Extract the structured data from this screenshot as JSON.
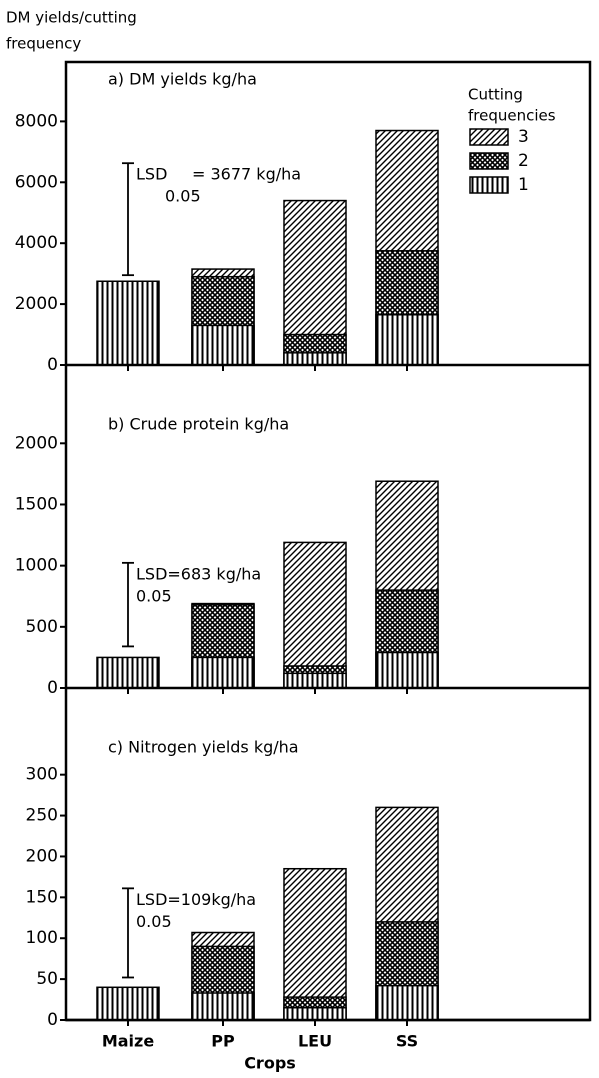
{
  "ylabel": [
    "DM yields/cutting",
    "frequency"
  ],
  "xlabel": "Crops",
  "categories": [
    "Maize",
    "PP",
    "LEU",
    "SS"
  ],
  "legend_title": [
    "Cutting",
    "frequencies"
  ],
  "chart_data": [
    {
      "type": "bar",
      "barmode": "overlay",
      "title": "a) DM yields  kg/ha",
      "ylim": [
        0,
        9950
      ],
      "yticks": [
        0,
        2000,
        4000,
        6000,
        8000
      ],
      "series": [
        {
          "name": "3",
          "pattern": "diagonal",
          "color": "#000000",
          "values": [
            null,
            3150,
            5400,
            7700
          ]
        },
        {
          "name": "2",
          "pattern": "cross",
          "color": "#000000",
          "values": [
            null,
            2900,
            1000,
            3750
          ]
        },
        {
          "name": "1",
          "pattern": "vertical",
          "color": "#000000",
          "values": [
            2750,
            1300,
            400,
            1650
          ]
        }
      ],
      "lsd": {
        "label": "LSD",
        "sub": "0.05",
        "text": "= 3677 kg/ha",
        "from": 2950,
        "value": 3677
      }
    },
    {
      "type": "bar",
      "barmode": "overlay",
      "title": "b) Crude  protein  kg/ha",
      "ylim": [
        0,
        2640
      ],
      "yticks": [
        0,
        500,
        1000,
        1500,
        2000
      ],
      "series": [
        {
          "name": "3",
          "pattern": "diagonal",
          "color": "#000000",
          "values": [
            null,
            690,
            1190,
            1690
          ]
        },
        {
          "name": "2",
          "pattern": "cross",
          "color": "#000000",
          "values": [
            null,
            680,
            180,
            800
          ]
        },
        {
          "name": "1",
          "pattern": "vertical",
          "color": "#000000",
          "values": [
            250,
            250,
            120,
            290
          ]
        }
      ],
      "lsd": {
        "label": "LSD=683 kg/ha",
        "sub": "0.05",
        "from": 340,
        "value": 683
      }
    },
    {
      "type": "bar",
      "barmode": "overlay",
      "title": "c) Nitrogen  yields  kg/ha",
      "ylim": [
        0,
        406
      ],
      "yticks": [
        0,
        50,
        100,
        150,
        200,
        250,
        300
      ],
      "series": [
        {
          "name": "3",
          "pattern": "diagonal",
          "color": "#000000",
          "values": [
            null,
            107,
            185,
            260
          ]
        },
        {
          "name": "2",
          "pattern": "cross",
          "color": "#000000",
          "values": [
            null,
            90,
            28,
            120
          ]
        },
        {
          "name": "1",
          "pattern": "vertical",
          "color": "#000000",
          "values": [
            40,
            33,
            15,
            42
          ]
        }
      ],
      "lsd": {
        "label": "LSD=109kg/ha",
        "sub": "0.05",
        "from": 52,
        "value": 109
      }
    }
  ]
}
